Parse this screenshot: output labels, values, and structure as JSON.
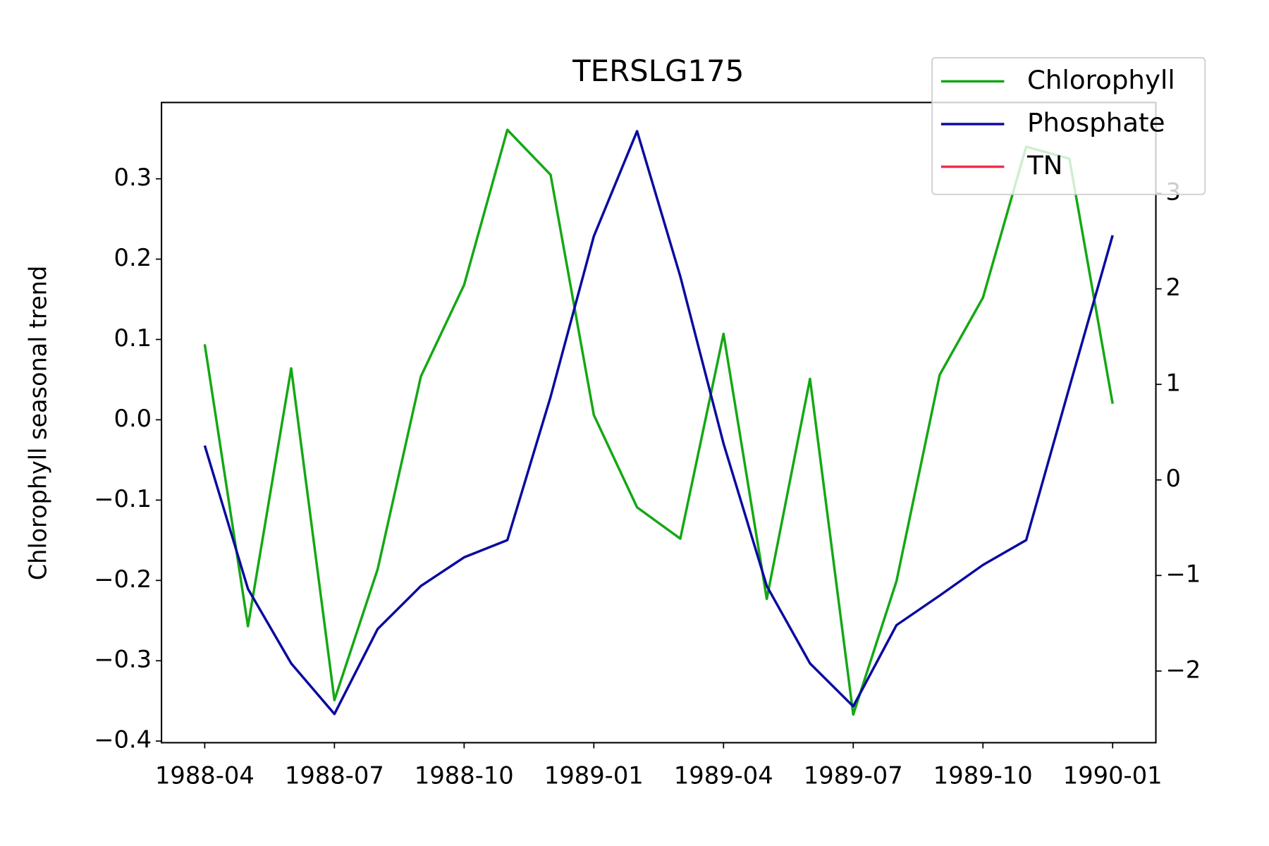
{
  "chart_data": {
    "type": "line",
    "title": "TERSLG175",
    "ylabel": "Chlorophyll seasonal trend",
    "x": [
      "1988-04",
      "1988-05",
      "1988-06",
      "1988-07",
      "1988-08",
      "1988-09",
      "1988-10",
      "1988-11",
      "1988-12",
      "1989-01",
      "1989-02",
      "1989-03",
      "1989-04",
      "1989-05",
      "1989-06",
      "1989-07",
      "1989-08",
      "1989-09",
      "1989-10",
      "1989-11",
      "1989-12",
      "1990-01"
    ],
    "xlim": [
      "1988-03",
      "1990-02"
    ],
    "xticks": [
      "1988-04",
      "1988-07",
      "1988-10",
      "1989-01",
      "1989-04",
      "1989-07",
      "1989-10",
      "1990-01"
    ],
    "ylim": [
      -0.402,
      0.395
    ],
    "yticks": [
      {
        "value": -0.4,
        "label": "−0.4"
      },
      {
        "value": -0.3,
        "label": "−0.3"
      },
      {
        "value": -0.2,
        "label": "−0.2"
      },
      {
        "value": -0.1,
        "label": "−0.1"
      },
      {
        "value": 0,
        "label": "0.0"
      },
      0.1,
      0.2,
      0.3
    ],
    "y2lim": [
      -2.75,
      3.95
    ],
    "y2ticks": [
      {
        "value": -2,
        "label": "−2"
      },
      {
        "value": -1,
        "label": "−1"
      },
      0,
      1,
      2,
      3
    ],
    "legend": "upper right",
    "series": [
      {
        "name": "Chlorophyll",
        "color": "#14a814",
        "values": [
          0.094,
          -0.257,
          0.064,
          -0.349,
          -0.186,
          0.054,
          0.168,
          0.361,
          0.305,
          0.006,
          -0.109,
          -0.148,
          0.107,
          -0.223,
          0.051,
          -0.367,
          -0.201,
          0.056,
          0.152,
          0.34,
          0.325,
          0.02
        ]
      },
      {
        "name": "Phosphate",
        "color": "#0a0aa0",
        "axis": "y2",
        "values": [
          0.36,
          -1.14,
          -1.92,
          -2.45,
          -1.56,
          -1.11,
          -0.81,
          -0.63,
          0.87,
          2.55,
          3.65,
          2.13,
          0.38,
          -1.11,
          -1.92,
          -2.37,
          -1.52,
          -1.21,
          -0.89,
          -0.63,
          0.97,
          2.56
        ]
      },
      {
        "name": "TN",
        "color": "#f0304a",
        "axis": "y2",
        "values": [
          null,
          null,
          null,
          null,
          null,
          null,
          null,
          null,
          null,
          null,
          null,
          null,
          null,
          null,
          null,
          null,
          null,
          null,
          null,
          null,
          null,
          null
        ]
      }
    ]
  }
}
